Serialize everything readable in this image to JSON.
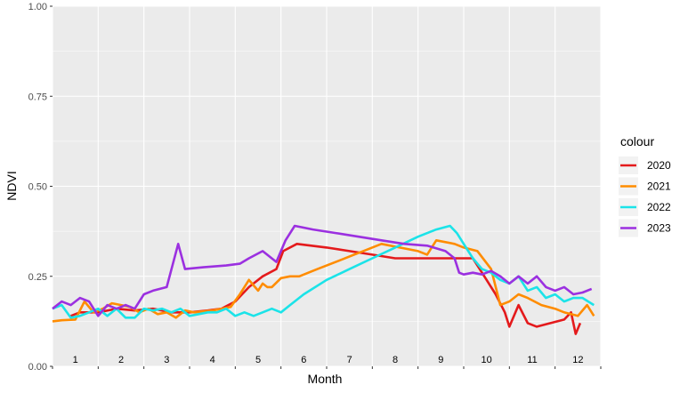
{
  "chart_data": {
    "type": "line",
    "xlabel": "Month",
    "ylabel": "NDVI",
    "xlim": [
      1,
      13
    ],
    "ylim": [
      0,
      1
    ],
    "y_ticks": [
      "0.00",
      "0.25",
      "0.50",
      "0.75",
      "1.00"
    ],
    "month_labels": [
      "1",
      "2",
      "3",
      "4",
      "5",
      "6",
      "7",
      "8",
      "9",
      "10",
      "11",
      "12"
    ],
    "legend_title": "colour",
    "legend_position": "right",
    "grid": true,
    "panel_background": "#EBEBEB",
    "series": [
      {
        "name": "2020",
        "color": "#E41A1C",
        "x": [
          1.4,
          1.6,
          2.0,
          2.4,
          2.8,
          3.2,
          3.6,
          4.0,
          4.4,
          4.7,
          5.0,
          5.3,
          5.6,
          5.9,
          6.05,
          6.35,
          7.0,
          7.5,
          8.0,
          8.5,
          9.0,
          9.5,
          10.0,
          10.2,
          10.5,
          10.7,
          10.9,
          11.0,
          11.2,
          11.4,
          11.6,
          11.9,
          12.2,
          12.35,
          12.45,
          12.55
        ],
        "y": [
          0.14,
          0.15,
          0.15,
          0.16,
          0.155,
          0.16,
          0.15,
          0.15,
          0.155,
          0.16,
          0.18,
          0.22,
          0.25,
          0.27,
          0.32,
          0.34,
          0.33,
          0.32,
          0.31,
          0.3,
          0.3,
          0.3,
          0.3,
          0.3,
          0.24,
          0.2,
          0.15,
          0.11,
          0.17,
          0.12,
          0.11,
          0.12,
          0.13,
          0.15,
          0.09,
          0.12
        ]
      },
      {
        "name": "2021",
        "color": "#FF8C00",
        "x": [
          1.0,
          1.2,
          1.5,
          1.7,
          1.9,
          2.1,
          2.3,
          2.5,
          2.7,
          2.9,
          3.1,
          3.3,
          3.5,
          3.7,
          3.9,
          4.1,
          4.5,
          4.9,
          5.1,
          5.3,
          5.5,
          5.6,
          5.7,
          5.8,
          6.0,
          6.2,
          6.4,
          6.8,
          7.2,
          7.6,
          7.8,
          8.2,
          8.6,
          9.0,
          9.2,
          9.4,
          9.8,
          10.0,
          10.3,
          10.6,
          10.8,
          11.0,
          11.2,
          11.4,
          11.7,
          12.0,
          12.2,
          12.5,
          12.7,
          12.85
        ],
        "y": [
          0.125,
          0.128,
          0.13,
          0.18,
          0.15,
          0.16,
          0.175,
          0.17,
          0.165,
          0.15,
          0.16,
          0.145,
          0.15,
          0.135,
          0.155,
          0.15,
          0.155,
          0.165,
          0.2,
          0.24,
          0.21,
          0.23,
          0.22,
          0.22,
          0.245,
          0.25,
          0.25,
          0.27,
          0.29,
          0.31,
          0.32,
          0.34,
          0.33,
          0.32,
          0.31,
          0.35,
          0.34,
          0.33,
          0.32,
          0.27,
          0.17,
          0.18,
          0.2,
          0.19,
          0.17,
          0.16,
          0.15,
          0.14,
          0.17,
          0.14
        ]
      },
      {
        "name": "2022",
        "color": "#1BE3E8",
        "x": [
          1.0,
          1.2,
          1.4,
          1.6,
          1.8,
          2.0,
          2.2,
          2.4,
          2.6,
          2.8,
          3.0,
          3.2,
          3.4,
          3.6,
          3.8,
          4.0,
          4.2,
          4.4,
          4.6,
          4.8,
          5.0,
          5.2,
          5.4,
          5.6,
          5.8,
          6.0,
          6.2,
          6.5,
          7.0,
          7.5,
          8.0,
          8.5,
          9.0,
          9.4,
          9.7,
          9.85,
          10.0,
          10.2,
          10.4,
          10.6,
          10.8,
          11.0,
          11.2,
          11.4,
          11.6,
          11.8,
          12.0,
          12.2,
          12.4,
          12.6,
          12.85
        ],
        "y": [
          0.16,
          0.17,
          0.135,
          0.14,
          0.15,
          0.16,
          0.14,
          0.16,
          0.135,
          0.135,
          0.16,
          0.155,
          0.16,
          0.15,
          0.16,
          0.14,
          0.145,
          0.15,
          0.15,
          0.16,
          0.14,
          0.15,
          0.14,
          0.15,
          0.16,
          0.15,
          0.17,
          0.2,
          0.24,
          0.27,
          0.3,
          0.33,
          0.36,
          0.38,
          0.39,
          0.37,
          0.34,
          0.3,
          0.27,
          0.26,
          0.24,
          0.23,
          0.25,
          0.21,
          0.22,
          0.19,
          0.2,
          0.18,
          0.19,
          0.19,
          0.17
        ]
      },
      {
        "name": "2023",
        "color": "#9B30E0",
        "x": [
          1.0,
          1.2,
          1.4,
          1.6,
          1.8,
          2.0,
          2.2,
          2.4,
          2.6,
          2.8,
          3.0,
          3.2,
          3.5,
          3.75,
          3.9,
          4.3,
          4.8,
          5.1,
          5.3,
          5.6,
          5.9,
          6.1,
          6.3,
          6.7,
          7.2,
          7.7,
          8.2,
          8.7,
          9.2,
          9.6,
          9.8,
          9.9,
          10.0,
          10.2,
          10.4,
          10.6,
          10.8,
          11.0,
          11.2,
          11.4,
          11.6,
          11.8,
          12.0,
          12.2,
          12.4,
          12.6,
          12.8
        ],
        "y": [
          0.16,
          0.18,
          0.17,
          0.19,
          0.18,
          0.14,
          0.17,
          0.16,
          0.17,
          0.16,
          0.2,
          0.21,
          0.22,
          0.34,
          0.27,
          0.275,
          0.28,
          0.285,
          0.3,
          0.32,
          0.29,
          0.35,
          0.39,
          0.38,
          0.37,
          0.36,
          0.35,
          0.34,
          0.335,
          0.32,
          0.3,
          0.26,
          0.255,
          0.26,
          0.255,
          0.265,
          0.25,
          0.23,
          0.25,
          0.23,
          0.25,
          0.22,
          0.21,
          0.22,
          0.2,
          0.205,
          0.215
        ]
      }
    ]
  }
}
